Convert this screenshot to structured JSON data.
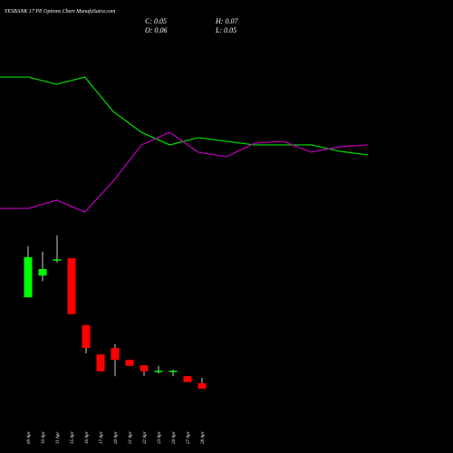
{
  "header": {
    "title": "YESBANK 17 PE Options Chart MunafaSutra.com",
    "stats": [
      "C: 0.05",
      "H: 0.07",
      "O: 0.06",
      "L: 0.05"
    ]
  },
  "chart_data": [
    {
      "type": "line",
      "ylim": [
        0,
        100
      ],
      "series": [
        {
          "color": "#00e000",
          "values": [
            86.8,
            86.8,
            82.6,
            86.8,
            66.8,
            54.7,
            47.4,
            51.6,
            49.5,
            47.4,
            47.4,
            47.4,
            43.7,
            41.6
          ]
        },
        {
          "color": "#c000c0",
          "values": [
            10.5,
            10.5,
            15.3,
            8.4,
            26.3,
            47.4,
            54.7,
            43.2,
            40.5,
            48.4,
            49.5,
            43.2,
            46.3,
            47.4
          ]
        }
      ]
    },
    {
      "type": "candlestick",
      "ylim": [
        0,
        0.37
      ],
      "up_color": "#00ff00",
      "down_color": "#ff0000",
      "categories": [
        "09 Apr",
        "10 Apr",
        "11 Apr",
        "15 Apr",
        "16 Apr",
        "17 Apr",
        "20 Apr",
        "21 Apr",
        "22 Apr",
        "23 Apr",
        "24 Apr",
        "27 Apr",
        "28 Apr"
      ],
      "open": [
        0.218,
        0.258,
        0.287,
        0.29,
        0.167,
        0.113,
        0.125,
        0.103,
        0.093,
        0.083,
        0.083,
        0.073,
        0.06
      ],
      "high": [
        0.312,
        0.302,
        0.332,
        0.29,
        0.167,
        0.113,
        0.132,
        0.103,
        0.093,
        0.092,
        0.085,
        0.073,
        0.07
      ],
      "low": [
        0.218,
        0.248,
        0.282,
        0.187,
        0.115,
        0.082,
        0.073,
        0.092,
        0.073,
        0.078,
        0.073,
        0.062,
        0.05
      ],
      "close": [
        0.292,
        0.27,
        0.288,
        0.187,
        0.125,
        0.082,
        0.103,
        0.092,
        0.082,
        0.083,
        0.083,
        0.062,
        0.05
      ]
    }
  ]
}
